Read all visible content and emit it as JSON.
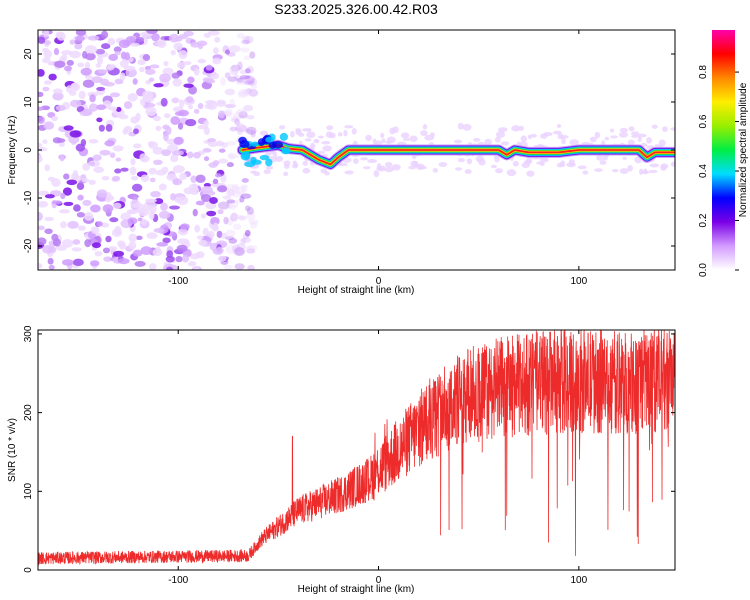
{
  "title": "S233.2025.326.00.42.R03",
  "chart_data": [
    {
      "type": "heatmap",
      "name": "spectrogram",
      "xlabel": "Height of straight line (km)",
      "ylabel": "Frequency (Hz)",
      "xlim": [
        -170,
        148
      ],
      "ylim": [
        -25,
        25
      ],
      "xticks": [
        -100,
        0,
        100
      ],
      "yticks": [
        -20,
        -10,
        0,
        10,
        20
      ],
      "xtick_labels": [
        "-100",
        "0",
        "100"
      ],
      "ytick_labels": [
        "-20",
        "-10",
        "0",
        "10",
        "20"
      ],
      "noise_region_x": [
        -170,
        -68
      ],
      "signal_start_x": -68,
      "signal_track": {
        "x": [
          -68,
          -60,
          -50,
          -45,
          -38,
          -30,
          -24,
          -20,
          -15,
          -5,
          10,
          40,
          60,
          64,
          68,
          75,
          90,
          100,
          130,
          134,
          138,
          148
        ],
        "y": [
          0,
          0.5,
          1,
          0.3,
          0,
          -2,
          -3,
          -1.5,
          0,
          0,
          0,
          0,
          0,
          -1,
          0,
          -0.5,
          -0.5,
          0,
          0,
          -1.5,
          -0.5,
          -0.5
        ]
      },
      "colorbar": {
        "label": "Normalized spectral amplitude",
        "range": [
          0,
          0.97
        ],
        "ticks": [
          0,
          0.2,
          0.4,
          0.6,
          0.8
        ],
        "tick_labels": [
          "0.0",
          "0.2",
          "0.4",
          "0.6",
          "0.8"
        ],
        "colors": [
          "#ffffff",
          "#d39cff",
          "#7a00e6",
          "#0000ff",
          "#00ddff",
          "#00ee44",
          "#99ee00",
          "#ffee00",
          "#ff8800",
          "#ff0000",
          "#ff00aa"
        ]
      }
    },
    {
      "type": "line",
      "name": "snr",
      "xlabel": "Height of straight line (km)",
      "ylabel": "SNR (10 * v/v)",
      "xlim": [
        -170,
        148
      ],
      "ylim": [
        0,
        305
      ],
      "xticks": [
        -100,
        0,
        100
      ],
      "yticks": [
        0,
        100,
        200,
        300
      ],
      "xtick_labels": [
        "-100",
        "0",
        "100"
      ],
      "ytick_labels": [
        "0",
        "100",
        "200",
        "300"
      ],
      "color": "#ee2b2b",
      "trend": {
        "x": [
          -170,
          -65,
          -58,
          -40,
          -20,
          -5,
          5,
          15,
          25,
          35,
          45,
          60,
          80,
          100,
          120,
          148
        ],
        "y": [
          15,
          18,
          40,
          75,
          95,
          115,
          140,
          165,
          190,
          208,
          222,
          232,
          238,
          240,
          238,
          245
        ]
      },
      "peaks": [
        {
          "x": -43,
          "y": 170
        },
        {
          "x": 93,
          "y": 308
        },
        {
          "x": 130,
          "y": 290
        }
      ]
    }
  ]
}
